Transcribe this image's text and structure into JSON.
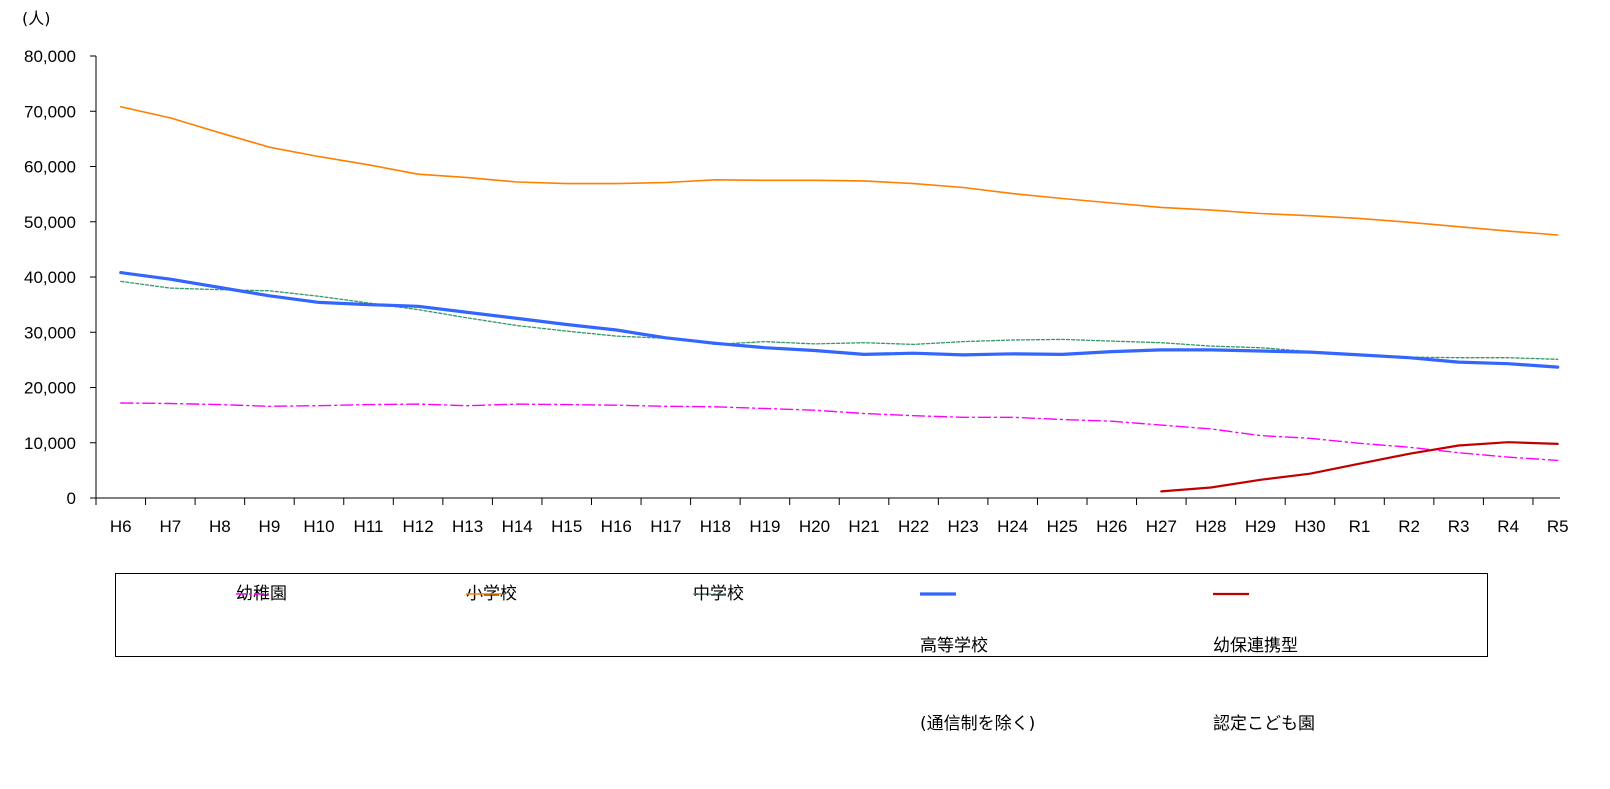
{
  "chart_data": {
    "type": "line",
    "unit_label": "(人)",
    "ylim": [
      0,
      80000
    ],
    "y_ticks": [
      0,
      10000,
      20000,
      30000,
      40000,
      50000,
      60000,
      70000,
      80000
    ],
    "y_tick_labels": [
      "0",
      "10,000",
      "20,000",
      "30,000",
      "40,000",
      "50,000",
      "60,000",
      "70,000",
      "80,000"
    ],
    "categories": [
      "H6",
      "H7",
      "H8",
      "H9",
      "H10",
      "H11",
      "H12",
      "H13",
      "H14",
      "H15",
      "H16",
      "H17",
      "H18",
      "H19",
      "H20",
      "H21",
      "H22",
      "H23",
      "H24",
      "H25",
      "H26",
      "H27",
      "H28",
      "H29",
      "H30",
      "R1",
      "R2",
      "R3",
      "R4",
      "R5"
    ],
    "grid": false,
    "legend_position": "bottom",
    "series": [
      {
        "name": "幼稚園",
        "style": "dashdot",
        "color": "#ff00ff",
        "values": [
          17200,
          17100,
          16900,
          16600,
          16700,
          16900,
          17000,
          16700,
          17000,
          16900,
          16800,
          16600,
          16500,
          16200,
          15900,
          15300,
          14900,
          14600,
          14600,
          14200,
          13900,
          13200,
          12500,
          11300,
          10800,
          9900,
          9200,
          8200,
          7400,
          6800
        ]
      },
      {
        "name": "小学校",
        "style": "solid",
        "color": "#ff7f00",
        "values": [
          70800,
          68800,
          66100,
          63500,
          61800,
          60300,
          58600,
          58000,
          57200,
          56900,
          56900,
          57100,
          57600,
          57500,
          57500,
          57400,
          56900,
          56200,
          55100,
          54200,
          53400,
          52600,
          52100,
          51500,
          51100,
          50600,
          49900,
          49100,
          48300,
          47600
        ]
      },
      {
        "name": "中学校",
        "style": "dashed",
        "color": "#339966",
        "values": [
          39200,
          38000,
          37700,
          37500,
          36500,
          35300,
          34100,
          32600,
          31200,
          30200,
          29300,
          28900,
          27800,
          28300,
          27900,
          28100,
          27800,
          28300,
          28600,
          28700,
          28400,
          28100,
          27500,
          27200,
          26500,
          25900,
          25500,
          25400,
          25400,
          25100
        ]
      },
      {
        "name": "高等学校\n(通信制を除く)",
        "style": "solid-thick",
        "color": "#3366ff",
        "values": [
          40800,
          39600,
          38100,
          36600,
          35400,
          35000,
          34700,
          33600,
          32500,
          31400,
          30400,
          29000,
          28000,
          27200,
          26700,
          26000,
          26200,
          25900,
          26100,
          26000,
          26500,
          26800,
          26800,
          26600,
          26400,
          25900,
          25400,
          24600,
          24300,
          23700
        ]
      },
      {
        "name": "幼保連携型\n認定こども園",
        "style": "solid",
        "color": "#c00000",
        "values": [
          null,
          null,
          null,
          null,
          null,
          null,
          null,
          null,
          null,
          null,
          null,
          null,
          null,
          null,
          null,
          null,
          null,
          null,
          null,
          null,
          null,
          1200,
          1900,
          3300,
          4400,
          6200,
          8000,
          9500,
          10100,
          9800
        ]
      }
    ]
  },
  "legend": {
    "items": [
      {
        "line1": "幼稚園",
        "line2": ""
      },
      {
        "line1": "小学校",
        "line2": ""
      },
      {
        "line1": "中学校",
        "line2": ""
      },
      {
        "line1": "高等学校",
        "line2": "(通信制を除く)"
      },
      {
        "line1": "幼保連携型",
        "line2": "認定こども園"
      }
    ]
  }
}
